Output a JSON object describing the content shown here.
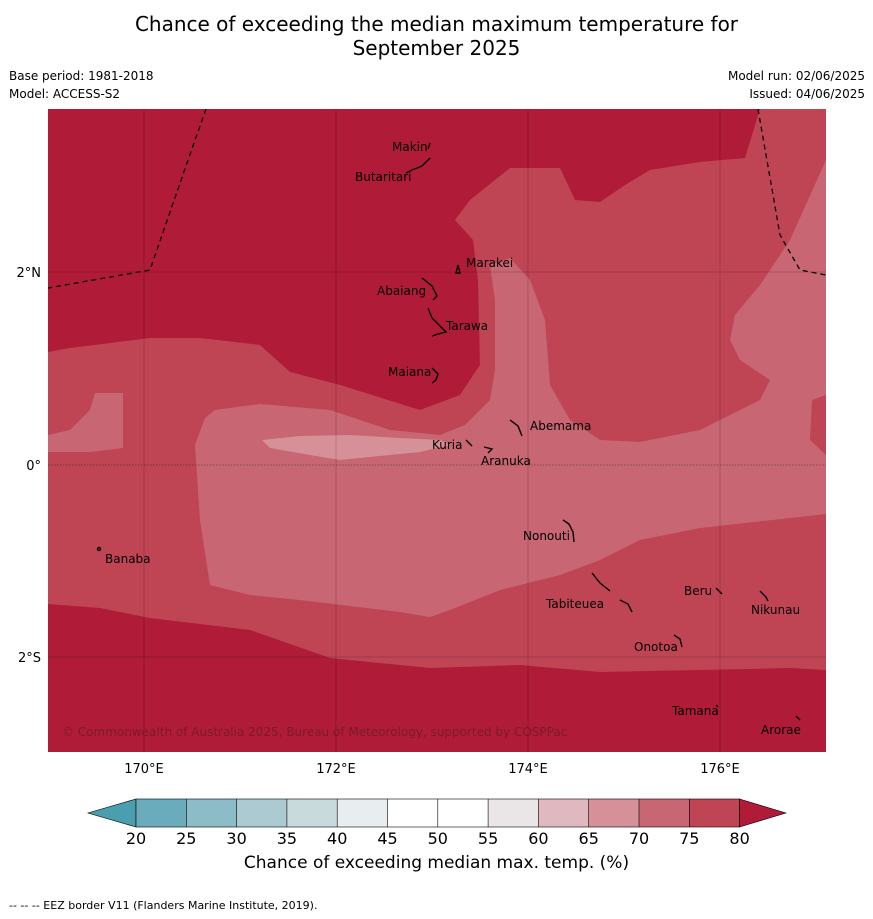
{
  "header": {
    "title_line1": "Chance of exceeding the median maximum temperature for",
    "title_line2": "September 2025",
    "base_period": "Base period: 1981-2018",
    "model": "Model: ACCESS-S2",
    "model_run": "Model run: 02/06/2025",
    "issued": "Issued: 04/06/2025"
  },
  "map": {
    "lon_ticks": [
      "170°E",
      "172°E",
      "174°E",
      "176°E"
    ],
    "lat_ticks": [
      "2°N",
      "0°",
      "2°S"
    ],
    "copyright": "© Commonwealth of Australia 2025, Bureau of Meteorology, supported by COSPPac",
    "places": [
      "Makin",
      "Butaritari",
      "Marakei",
      "Abaiang",
      "Tarawa",
      "Maiana",
      "Abemama",
      "Kuria",
      "Aranuka",
      "Nonouti",
      "Banaba",
      "Beru",
      "Nikunau",
      "Tabiteuea",
      "Onotoa",
      "Tamana",
      "Arorae"
    ]
  },
  "colorbar": {
    "ticks": [
      "20",
      "25",
      "30",
      "35",
      "40",
      "45",
      "50",
      "55",
      "60",
      "65",
      "70",
      "75",
      "80"
    ],
    "colors": {
      "below_20": "#4a9fae",
      "c20_25": "#6aacbb",
      "c25_30": "#8cbcc8",
      "c30_35": "#abcad1",
      "c35_40": "#c9dadd",
      "c40_45": "#e8eef0",
      "c45_55": "#ffffff",
      "c55_60": "#eae6e8",
      "c60_65": "#e0b8bf",
      "c65_70": "#d69098",
      "c70_75": "#c86773",
      "c75_80": "#bf4555",
      "above_80": "#b01c37"
    },
    "label": "Chance of exceeding median max. temp. (%)"
  },
  "footnote": "--  --  -- EEZ border V11 (Flanders Marine Institute, 2019)."
}
